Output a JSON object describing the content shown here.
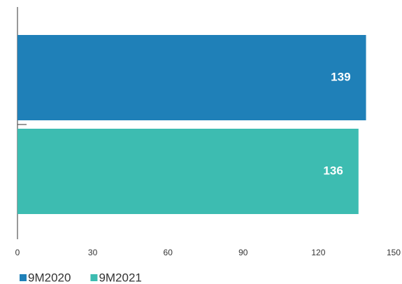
{
  "chart_data": {
    "type": "bar",
    "orientation": "horizontal",
    "categories": [
      null
    ],
    "series": [
      {
        "name": "9M2020",
        "color": "#1f80b8",
        "values": [
          139
        ]
      },
      {
        "name": "9M2021",
        "color": "#3dbcb1",
        "values": [
          136
        ]
      }
    ],
    "xlim": [
      0,
      150
    ],
    "xticks": [
      0,
      30,
      60,
      90,
      120,
      150
    ],
    "grid": false,
    "legend": "bottom-left"
  }
}
